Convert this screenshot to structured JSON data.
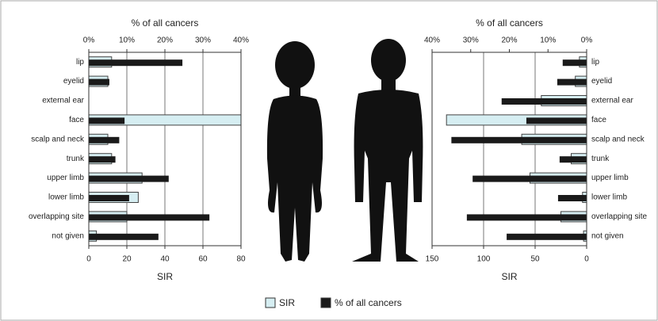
{
  "chart_data": [
    {
      "type": "bar",
      "orientation": "horizontal",
      "categories": [
        "lip",
        "eyelid",
        "external ear",
        "face",
        "scalp and neck",
        "trunk",
        "upper limb",
        "lower limb",
        "overlapping site",
        "not given"
      ],
      "xlabel": "SIR",
      "x2label": "% of all cancers",
      "xlim": [
        0,
        80
      ],
      "xticks": [
        0,
        20,
        40,
        60,
        80
      ],
      "x2lim": [
        0,
        40
      ],
      "x2ticks": [
        {
          "value": 0,
          "label": "0%"
        },
        {
          "value": 10,
          "label": "10%"
        },
        {
          "value": 20,
          "label": "20%"
        },
        {
          "value": 30,
          "label": "30%"
        },
        {
          "value": 40,
          "label": "40%"
        }
      ],
      "grid": true,
      "series": [
        {
          "name": "SIR",
          "color": "#d6eef2",
          "values": [
            12,
            10,
            0,
            80,
            10,
            12,
            28,
            26,
            20,
            4
          ]
        },
        {
          "name": "% of all cancers",
          "color": "#1a1a1a",
          "axis": "x2",
          "values": [
            24.6,
            5.4,
            0,
            9.4,
            8,
            7,
            21,
            10.6,
            31.7,
            18.3
          ]
        }
      ]
    },
    {
      "type": "bar",
      "orientation": "horizontal",
      "categories": [
        "lip",
        "eyelid",
        "external ear",
        "face",
        "scalp and neck",
        "trunk",
        "upper limb",
        "lower limb",
        "overlapping site",
        "not given"
      ],
      "xlabel": "SIR",
      "x2label": "% of all cancers",
      "xlim": [
        150,
        0
      ],
      "xticks": [
        150,
        100,
        50,
        0
      ],
      "x2lim": [
        40,
        0
      ],
      "x2ticks": [
        {
          "value": 40,
          "label": "40%"
        },
        {
          "value": 30,
          "label": "30%"
        },
        {
          "value": 20,
          "label": "20%"
        },
        {
          "value": 10,
          "label": "10%"
        },
        {
          "value": 0,
          "label": "0%"
        }
      ],
      "grid": true,
      "series": [
        {
          "name": "SIR",
          "color": "#d6eef2",
          "values": [
            7,
            11,
            44,
            136,
            63,
            15,
            55,
            4,
            25,
            3
          ]
        },
        {
          "name": "% of all cancers",
          "color": "#1a1a1a",
          "axis": "x2",
          "values": [
            6.2,
            7.6,
            22,
            15.6,
            35,
            7,
            29.5,
            7.4,
            31,
            20.7
          ]
        }
      ]
    }
  ]
}
